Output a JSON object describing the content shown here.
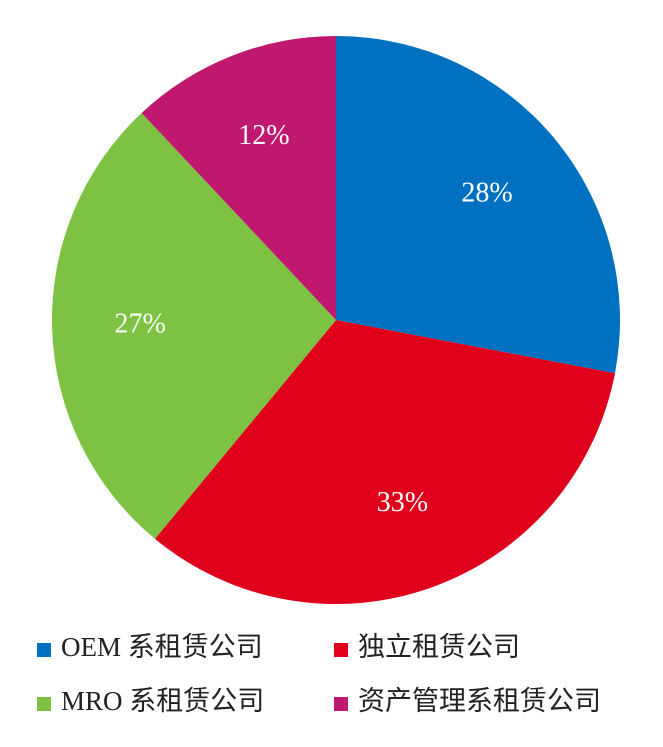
{
  "chart_data": {
    "type": "pie",
    "categories": [
      "OEM 系租赁公司",
      "独立租赁公司",
      "MRO 系租赁公司",
      "资产管理系租赁公司"
    ],
    "values": [
      28,
      33,
      27,
      12
    ],
    "value_labels": [
      "28%",
      "33%",
      "27%",
      "12%"
    ],
    "colors": [
      "#0070c0",
      "#e0001b",
      "#7dc242",
      "#c0186f"
    ]
  }
}
